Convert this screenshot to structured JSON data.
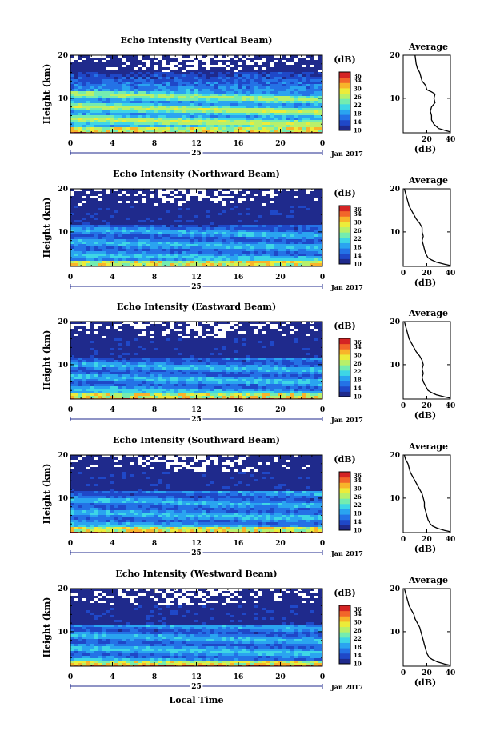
{
  "colors": {
    "colormap": [
      "#1f2a8c",
      "#1f48c8",
      "#2472e6",
      "#2aa4f0",
      "#3ed6e6",
      "#74ecb0",
      "#b8f06a",
      "#ecec3a",
      "#f8b42a",
      "#f2662a",
      "#d42424"
    ],
    "background": "#ffffff",
    "axis": "#000000",
    "date_axis": "#1f2a8c"
  },
  "footer": {
    "xlabel": "Local Time"
  },
  "chart_data": [
    {
      "type": "heatmap",
      "title": "Echo Intensity (Vertical Beam)",
      "ylabel": "Height (km)",
      "xlim": [
        0,
        24
      ],
      "ylim": [
        2,
        20
      ],
      "xticks": [
        "0",
        "4",
        "8",
        "12",
        "16",
        "20",
        "0"
      ],
      "yticks": [
        "20",
        "10"
      ],
      "date_label": "25",
      "date_suffix": "Jan 2017",
      "colorbar": {
        "label": "(dB)",
        "ticks": [
          "36",
          "34",
          "30",
          "26",
          "22",
          "18",
          "14",
          "10"
        ],
        "range": [
          10,
          38
        ]
      },
      "profile": {
        "type": "line",
        "title": "Average",
        "xlabel": "(dB)",
        "xlim": [
          0,
          40
        ],
        "ylim": [
          2,
          20
        ],
        "xticks": [
          "20",
          "40"
        ],
        "yticks": [
          "20",
          "10"
        ],
        "x": [
          10,
          11,
          12,
          14,
          16,
          19,
          20,
          24,
          27,
          26,
          27,
          24,
          23,
          24,
          24,
          26,
          28,
          30,
          36,
          40
        ],
        "y": [
          20,
          18,
          17,
          16,
          14,
          13,
          12,
          11.5,
          11,
          10,
          9,
          8,
          7,
          6,
          5,
          4,
          3.5,
          3,
          2.5,
          2.2
        ]
      }
    },
    {
      "type": "heatmap",
      "title": "Echo Intensity (Northward Beam)",
      "ylabel": "Height (km)",
      "xlim": [
        0,
        24
      ],
      "ylim": [
        2,
        20
      ],
      "xticks": [
        "0",
        "4",
        "8",
        "12",
        "16",
        "20",
        "0"
      ],
      "yticks": [
        "20",
        "10"
      ],
      "date_label": "25",
      "date_suffix": "Jan 2017",
      "colorbar": {
        "label": "(dB)",
        "ticks": [
          "36",
          "34",
          "30",
          "26",
          "22",
          "18",
          "14",
          "10"
        ],
        "range": [
          10,
          38
        ]
      },
      "profile": {
        "type": "line",
        "title": "Average",
        "xlabel": "(dB)",
        "xlim": [
          0,
          40
        ],
        "ylim": [
          2,
          20
        ],
        "xticks": [
          "0",
          "20",
          "40"
        ],
        "yticks": [
          "20",
          "10"
        ],
        "x": [
          1,
          2,
          3,
          5,
          7,
          9,
          11,
          14,
          16,
          16,
          17,
          16,
          17,
          18,
          19,
          21,
          24,
          28,
          35,
          40
        ],
        "y": [
          20,
          19,
          18,
          16,
          15,
          14,
          13,
          12,
          11,
          10,
          9,
          8,
          7,
          6,
          5,
          4,
          3.5,
          3,
          2.5,
          2.2
        ]
      }
    },
    {
      "type": "heatmap",
      "title": "Echo Intensity (Eastward Beam)",
      "ylabel": "Height (km)",
      "xlim": [
        0,
        24
      ],
      "ylim": [
        2,
        20
      ],
      "xticks": [
        "0",
        "4",
        "8",
        "12",
        "16",
        "20",
        "0"
      ],
      "yticks": [
        "20",
        "10"
      ],
      "date_label": "25",
      "date_suffix": "Jan 2017",
      "colorbar": {
        "label": "(dB)",
        "ticks": [
          "36",
          "34",
          "30",
          "26",
          "22",
          "18",
          "14",
          "10"
        ],
        "range": [
          10,
          38
        ]
      },
      "profile": {
        "type": "line",
        "title": "Average",
        "xlabel": "(dB)",
        "xlim": [
          0,
          40
        ],
        "ylim": [
          2,
          20
        ],
        "xticks": [
          "0",
          "20",
          "40"
        ],
        "yticks": [
          "20",
          "10"
        ],
        "x": [
          1,
          2,
          3,
          5,
          7,
          9,
          11,
          14,
          16,
          17,
          16,
          17,
          16,
          17,
          19,
          21,
          24,
          28,
          35,
          40
        ],
        "y": [
          20,
          19,
          18,
          16,
          15,
          14,
          13,
          12,
          11,
          10,
          9,
          8,
          7,
          6,
          5,
          4,
          3.5,
          3,
          2.5,
          2.2
        ]
      }
    },
    {
      "type": "heatmap",
      "title": "Echo Intensity (Southward Beam)",
      "ylabel": "Height (km)",
      "xlim": [
        0,
        24
      ],
      "ylim": [
        2,
        20
      ],
      "xticks": [
        "0",
        "4",
        "8",
        "12",
        "16",
        "20",
        "0"
      ],
      "yticks": [
        "20",
        "10"
      ],
      "date_label": "25",
      "date_suffix": "Jan 2017",
      "colorbar": {
        "label": "(dB)",
        "ticks": [
          "36",
          "34",
          "30",
          "26",
          "22",
          "18",
          "14",
          "10"
        ],
        "range": [
          10,
          38
        ]
      },
      "profile": {
        "type": "line",
        "title": "Average",
        "xlabel": "(dB)",
        "xlim": [
          0,
          40
        ],
        "ylim": [
          2,
          20
        ],
        "xticks": [
          "0",
          "20",
          "40"
        ],
        "yticks": [
          "20",
          "10"
        ],
        "x": [
          1,
          2,
          4,
          6,
          8,
          10,
          12,
          14,
          16,
          17,
          18,
          18,
          19,
          20,
          21,
          23,
          25,
          29,
          35,
          40
        ],
        "y": [
          20,
          19,
          18,
          16,
          15,
          14,
          13,
          12,
          11,
          10,
          9,
          8,
          7,
          6,
          5,
          4,
          3.5,
          3,
          2.5,
          2.2
        ]
      }
    },
    {
      "type": "heatmap",
      "title": "Echo Intensity (Westward Beam)",
      "ylabel": "Height (km)",
      "xlim": [
        0,
        24
      ],
      "ylim": [
        2,
        20
      ],
      "xticks": [
        "0",
        "4",
        "8",
        "12",
        "16",
        "20",
        "0"
      ],
      "yticks": [
        "20",
        "10"
      ],
      "date_label": "25",
      "date_suffix": "Jan 2017",
      "colorbar": {
        "label": "(dB)",
        "ticks": [
          "36",
          "34",
          "30",
          "26",
          "22",
          "18",
          "14",
          "10"
        ],
        "range": [
          10,
          38
        ]
      },
      "profile": {
        "type": "line",
        "title": "Average",
        "xlabel": "(dB)",
        "xlim": [
          0,
          40
        ],
        "ylim": [
          2,
          20
        ],
        "xticks": [
          "0",
          "20",
          "40"
        ],
        "yticks": [
          "20",
          "10"
        ],
        "x": [
          1,
          2,
          3,
          5,
          7,
          9,
          10,
          12,
          14,
          15,
          16,
          17,
          18,
          19,
          20,
          22,
          25,
          29,
          35,
          40
        ],
        "y": [
          20,
          19,
          18,
          16,
          15,
          14,
          13,
          12,
          11,
          10,
          9,
          8,
          7,
          6,
          5,
          4,
          3.5,
          3,
          2.5,
          2.2
        ]
      }
    }
  ]
}
